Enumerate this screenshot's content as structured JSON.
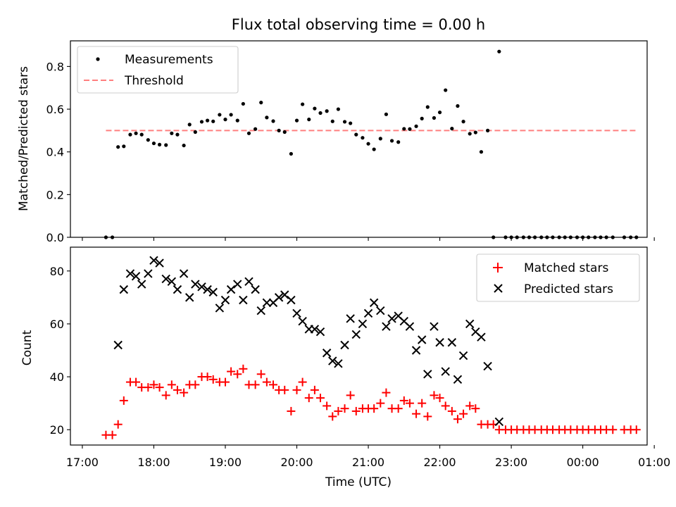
{
  "chart_data": [
    {
      "type": "scatter",
      "title": "Flux total observing time = 0.00 h",
      "xlabel": "",
      "ylabel": "Matched/Predicted stars",
      "xlim": [
        -0.1667,
        7.9
      ],
      "ylim": [
        0,
        0.92
      ],
      "yticks": [
        0.0,
        0.2,
        0.4,
        0.6,
        0.8
      ],
      "ytick_labels": [
        "0.0",
        "0.2",
        "0.4",
        "0.6",
        "0.8"
      ],
      "legend_position": "upper-left",
      "series": [
        {
          "name": "Measurements",
          "style": "dot",
          "color": "#000000",
          "points": [
            [
              0.33,
              0.0
            ],
            [
              0.42,
              0.0
            ],
            [
              0.5,
              0.423
            ],
            [
              0.58,
              0.426
            ],
            [
              0.67,
              0.481
            ],
            [
              0.75,
              0.487
            ],
            [
              0.83,
              0.481
            ],
            [
              0.92,
              0.456
            ],
            [
              1.0,
              0.44
            ],
            [
              1.08,
              0.434
            ],
            [
              1.17,
              0.432
            ],
            [
              1.25,
              0.487
            ],
            [
              1.33,
              0.481
            ],
            [
              1.42,
              0.43
            ],
            [
              1.5,
              0.528
            ],
            [
              1.58,
              0.493
            ],
            [
              1.67,
              0.541
            ],
            [
              1.75,
              0.547
            ],
            [
              1.83,
              0.543
            ],
            [
              1.92,
              0.574
            ],
            [
              2.0,
              0.552
            ],
            [
              2.08,
              0.574
            ],
            [
              2.17,
              0.547
            ],
            [
              2.25,
              0.625
            ],
            [
              2.33,
              0.487
            ],
            [
              2.42,
              0.507
            ],
            [
              2.5,
              0.631
            ],
            [
              2.58,
              0.561
            ],
            [
              2.67,
              0.544
            ],
            [
              2.75,
              0.5
            ],
            [
              2.83,
              0.493
            ],
            [
              2.92,
              0.391
            ],
            [
              3.0,
              0.547
            ],
            [
              3.08,
              0.623
            ],
            [
              3.17,
              0.552
            ],
            [
              3.25,
              0.603
            ],
            [
              3.33,
              0.582
            ],
            [
              3.42,
              0.591
            ],
            [
              3.5,
              0.543
            ],
            [
              3.58,
              0.6
            ],
            [
              3.67,
              0.541
            ],
            [
              3.75,
              0.534
            ],
            [
              3.83,
              0.481
            ],
            [
              3.92,
              0.466
            ],
            [
              4.0,
              0.438
            ],
            [
              4.08,
              0.412
            ],
            [
              4.17,
              0.462
            ],
            [
              4.25,
              0.576
            ],
            [
              4.33,
              0.452
            ],
            [
              4.42,
              0.446
            ],
            [
              4.5,
              0.508
            ],
            [
              4.58,
              0.507
            ],
            [
              4.67,
              0.52
            ],
            [
              4.75,
              0.556
            ],
            [
              4.83,
              0.61
            ],
            [
              4.92,
              0.559
            ],
            [
              5.0,
              0.585
            ],
            [
              5.08,
              0.689
            ],
            [
              5.17,
              0.509
            ],
            [
              5.25,
              0.615
            ],
            [
              5.33,
              0.542
            ],
            [
              5.42,
              0.485
            ],
            [
              5.5,
              0.491
            ],
            [
              5.58,
              0.4
            ],
            [
              5.67,
              0.5
            ],
            [
              5.75,
              0.0
            ],
            [
              5.83,
              0.87
            ],
            [
              5.92,
              0.0
            ],
            [
              6.0,
              0.0
            ],
            [
              6.08,
              0.0
            ],
            [
              6.17,
              0.0
            ],
            [
              6.25,
              0.0
            ],
            [
              6.33,
              0.0
            ],
            [
              6.42,
              0.0
            ],
            [
              6.5,
              0.0
            ],
            [
              6.58,
              0.0
            ],
            [
              6.67,
              0.0
            ],
            [
              6.75,
              0.0
            ],
            [
              6.83,
              0.0
            ],
            [
              6.92,
              0.0
            ],
            [
              7.0,
              0.0
            ],
            [
              7.08,
              0.0
            ],
            [
              7.17,
              0.0
            ],
            [
              7.25,
              0.0
            ],
            [
              7.33,
              0.0
            ],
            [
              7.42,
              0.0
            ],
            [
              7.58,
              0.0
            ],
            [
              7.67,
              0.0
            ],
            [
              7.75,
              0.0
            ]
          ]
        },
        {
          "name": "Threshold",
          "style": "dashed-line",
          "color": "#ff7f7f",
          "points": [
            [
              0.33,
              0.5
            ],
            [
              7.75,
              0.5
            ]
          ]
        }
      ]
    },
    {
      "type": "scatter",
      "title": "",
      "xlabel": "Time (UTC)",
      "ylabel": "Count",
      "xlim": [
        -0.1667,
        7.9
      ],
      "ylim": [
        14.2,
        89
      ],
      "yticks": [
        20,
        40,
        60,
        80
      ],
      "ytick_labels": [
        "20",
        "40",
        "60",
        "80"
      ],
      "xticks": [
        0,
        1,
        2,
        3,
        4,
        5,
        6,
        7,
        8
      ],
      "xtick_labels": [
        "17:00",
        "18:00",
        "19:00",
        "20:00",
        "21:00",
        "22:00",
        "23:00",
        "00:00",
        "01:00"
      ],
      "legend_position": "upper-right",
      "series": [
        {
          "name": "Matched stars",
          "style": "plus",
          "color": "#ff0000",
          "points": [
            [
              0.33,
              18
            ],
            [
              0.42,
              18
            ],
            [
              0.5,
              22
            ],
            [
              0.58,
              31
            ],
            [
              0.67,
              38
            ],
            [
              0.75,
              38
            ],
            [
              0.83,
              36
            ],
            [
              0.92,
              36
            ],
            [
              1.0,
              37
            ],
            [
              1.08,
              36
            ],
            [
              1.17,
              33
            ],
            [
              1.25,
              37
            ],
            [
              1.33,
              35
            ],
            [
              1.42,
              34
            ],
            [
              1.5,
              37
            ],
            [
              1.58,
              37
            ],
            [
              1.67,
              40
            ],
            [
              1.75,
              40
            ],
            [
              1.83,
              39
            ],
            [
              1.92,
              38
            ],
            [
              2.0,
              38
            ],
            [
              2.08,
              42
            ],
            [
              2.17,
              41
            ],
            [
              2.25,
              43
            ],
            [
              2.33,
              37
            ],
            [
              2.42,
              37
            ],
            [
              2.5,
              41
            ],
            [
              2.58,
              38
            ],
            [
              2.67,
              37
            ],
            [
              2.75,
              35
            ],
            [
              2.83,
              35
            ],
            [
              2.92,
              27
            ],
            [
              3.0,
              35
            ],
            [
              3.08,
              38
            ],
            [
              3.17,
              32
            ],
            [
              3.25,
              35
            ],
            [
              3.33,
              32
            ],
            [
              3.42,
              29
            ],
            [
              3.5,
              25
            ],
            [
              3.58,
              27
            ],
            [
              3.67,
              28
            ],
            [
              3.75,
              33
            ],
            [
              3.83,
              27
            ],
            [
              3.92,
              28
            ],
            [
              4.0,
              28
            ],
            [
              4.08,
              28
            ],
            [
              4.17,
              30
            ],
            [
              4.25,
              34
            ],
            [
              4.33,
              28
            ],
            [
              4.42,
              28
            ],
            [
              4.5,
              31
            ],
            [
              4.58,
              30
            ],
            [
              4.67,
              26
            ],
            [
              4.75,
              30
            ],
            [
              4.83,
              25
            ],
            [
              4.92,
              33
            ],
            [
              5.0,
              32
            ],
            [
              5.08,
              29
            ],
            [
              5.17,
              27
            ],
            [
              5.25,
              24
            ],
            [
              5.33,
              26
            ],
            [
              5.42,
              29
            ],
            [
              5.5,
              28
            ],
            [
              5.58,
              22
            ],
            [
              5.67,
              22
            ],
            [
              5.75,
              22
            ],
            [
              5.83,
              20
            ],
            [
              5.92,
              20
            ],
            [
              6.0,
              20
            ],
            [
              6.08,
              20
            ],
            [
              6.17,
              20
            ],
            [
              6.25,
              20
            ],
            [
              6.33,
              20
            ],
            [
              6.42,
              20
            ],
            [
              6.5,
              20
            ],
            [
              6.58,
              20
            ],
            [
              6.67,
              20
            ],
            [
              6.75,
              20
            ],
            [
              6.83,
              20
            ],
            [
              6.92,
              20
            ],
            [
              7.0,
              20
            ],
            [
              7.08,
              20
            ],
            [
              7.17,
              20
            ],
            [
              7.25,
              20
            ],
            [
              7.33,
              20
            ],
            [
              7.42,
              20
            ],
            [
              7.58,
              20
            ],
            [
              7.67,
              20
            ],
            [
              7.75,
              20
            ]
          ]
        },
        {
          "name": "Predicted stars",
          "style": "x",
          "color": "#000000",
          "points": [
            [
              0.5,
              52
            ],
            [
              0.58,
              73
            ],
            [
              0.67,
              79
            ],
            [
              0.75,
              78
            ],
            [
              0.83,
              75
            ],
            [
              0.92,
              79
            ],
            [
              1.0,
              84
            ],
            [
              1.08,
              83
            ],
            [
              1.17,
              77
            ],
            [
              1.25,
              76
            ],
            [
              1.33,
              73
            ],
            [
              1.42,
              79
            ],
            [
              1.5,
              70
            ],
            [
              1.58,
              75
            ],
            [
              1.67,
              74
            ],
            [
              1.75,
              73
            ],
            [
              1.83,
              72
            ],
            [
              1.92,
              66
            ],
            [
              2.0,
              69
            ],
            [
              2.08,
              73
            ],
            [
              2.17,
              75
            ],
            [
              2.25,
              69
            ],
            [
              2.33,
              76
            ],
            [
              2.42,
              73
            ],
            [
              2.5,
              65
            ],
            [
              2.58,
              68
            ],
            [
              2.67,
              68
            ],
            [
              2.75,
              70
            ],
            [
              2.83,
              71
            ],
            [
              2.92,
              69
            ],
            [
              3.0,
              64
            ],
            [
              3.08,
              61
            ],
            [
              3.17,
              58
            ],
            [
              3.25,
              58
            ],
            [
              3.33,
              57
            ],
            [
              3.42,
              49
            ],
            [
              3.5,
              46
            ],
            [
              3.58,
              45
            ],
            [
              3.67,
              52
            ],
            [
              3.75,
              62
            ],
            [
              3.83,
              56
            ],
            [
              3.92,
              60
            ],
            [
              4.0,
              64
            ],
            [
              4.08,
              68
            ],
            [
              4.17,
              65
            ],
            [
              4.25,
              59
            ],
            [
              4.33,
              62
            ],
            [
              4.42,
              63
            ],
            [
              4.5,
              61
            ],
            [
              4.58,
              59
            ],
            [
              4.67,
              50
            ],
            [
              4.75,
              54
            ],
            [
              4.83,
              41
            ],
            [
              4.92,
              59
            ],
            [
              5.0,
              53
            ],
            [
              5.08,
              42
            ],
            [
              5.17,
              53
            ],
            [
              5.25,
              39
            ],
            [
              5.33,
              48
            ],
            [
              5.42,
              60
            ],
            [
              5.5,
              57
            ],
            [
              5.58,
              55
            ],
            [
              5.67,
              44
            ],
            [
              5.83,
              23
            ]
          ]
        }
      ]
    }
  ],
  "colors": {
    "measurement": "#000000",
    "threshold": "#ff7f7f",
    "matched": "#ff0000",
    "predicted": "#000000"
  }
}
